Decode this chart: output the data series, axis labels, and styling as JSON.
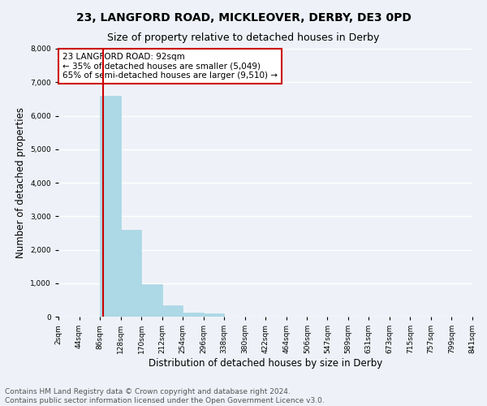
{
  "title": "23, LANGFORD ROAD, MICKLEOVER, DERBY, DE3 0PD",
  "subtitle": "Size of property relative to detached houses in Derby",
  "xlabel": "Distribution of detached houses by size in Derby",
  "ylabel": "Number of detached properties",
  "footnote1": "Contains HM Land Registry data © Crown copyright and database right 2024.",
  "footnote2": "Contains public sector information licensed under the Open Government Licence v3.0.",
  "bar_edges": [
    2,
    44,
    86,
    128,
    170,
    212,
    254,
    296,
    338,
    380,
    422,
    464,
    506,
    547,
    589,
    631,
    673,
    715,
    757,
    799,
    841
  ],
  "bar_heights": [
    4,
    0,
    6600,
    2600,
    970,
    330,
    130,
    90,
    0,
    0,
    0,
    0,
    0,
    0,
    0,
    0,
    0,
    0,
    0,
    0
  ],
  "bar_color": "#add8e6",
  "bar_edgecolor": "#add8e6",
  "vline_color": "#cc0000",
  "vline_x": 92,
  "annotation_title": "23 LANGFORD ROAD: 92sqm",
  "annotation_line1": "← 35% of detached houses are smaller (5,049)",
  "annotation_line2": "65% of semi-detached houses are larger (9,510) →",
  "annotation_box_color": "#ffffff",
  "annotation_box_edgecolor": "#cc0000",
  "ylim": [
    0,
    8000
  ],
  "yticks": [
    0,
    1000,
    2000,
    3000,
    4000,
    5000,
    6000,
    7000,
    8000
  ],
  "xtick_labels": [
    "2sqm",
    "44sqm",
    "86sqm",
    "128sqm",
    "170sqm",
    "212sqm",
    "254sqm",
    "296sqm",
    "338sqm",
    "380sqm",
    "422sqm",
    "464sqm",
    "506sqm",
    "547sqm",
    "589sqm",
    "631sqm",
    "673sqm",
    "715sqm",
    "757sqm",
    "799sqm",
    "841sqm"
  ],
  "bg_color": "#eef2f8",
  "grid_color": "#ffffff",
  "title_fontsize": 10,
  "subtitle_fontsize": 9,
  "axis_label_fontsize": 8.5,
  "tick_fontsize": 6.5,
  "annotation_fontsize": 7.5,
  "footnote_fontsize": 6.5
}
